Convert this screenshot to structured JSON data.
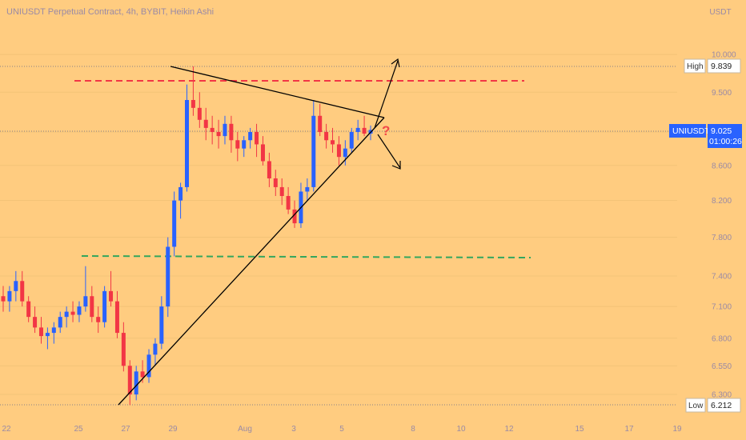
{
  "header": {
    "title": "UNIUSDT Perpetual Contract, 4h, BYBIT, Heikin Ashi",
    "currency": "USDT"
  },
  "colors": {
    "background": "#ffcc80",
    "bull": "#2962ff",
    "bear": "#f23645",
    "resistance": "#f23645",
    "support": "#33a65e",
    "trendline": "#000000",
    "label_bg": "#2962ff"
  },
  "price_tags": {
    "high": {
      "label": "High",
      "value": "9.839"
    },
    "low": {
      "label": "Low",
      "value": "6.212"
    },
    "last": {
      "label": "UNIUSDT",
      "value": "9.025",
      "countdown": "01:00:26"
    }
  },
  "annotation": {
    "text": "?"
  },
  "chart_data": {
    "type": "candlestick",
    "style": "Heikin Ashi",
    "symbol": "UNIUSDT",
    "timeframe": "4h",
    "exchange": "BYBIT",
    "y_axis": {
      "scale": "log",
      "ticks": [
        "10.000",
        "9.500",
        "9.000",
        "8.600",
        "8.200",
        "7.800",
        "7.400",
        "7.100",
        "6.800",
        "6.550",
        "6.300"
      ]
    },
    "x_axis": {
      "ticks": [
        "22",
        "25",
        "27",
        "29",
        "Aug",
        "3",
        "5",
        "8",
        "10",
        "12",
        "15",
        "17",
        "19"
      ]
    },
    "high": 9.839,
    "low": 6.212,
    "last": 9.025,
    "levels": [
      {
        "name": "resistance",
        "style": "dashed",
        "color": "#f23645",
        "price": 9.63
      },
      {
        "name": "support",
        "style": "dashed",
        "color": "#33a65e",
        "price": 7.56
      }
    ],
    "trendlines": [
      {
        "from": {
          "day": 29.0,
          "price": 9.839
        },
        "to": {
          "day": 36.1,
          "price": 9.07
        }
      },
      {
        "from": {
          "day": 26.9,
          "price": 6.212
        },
        "to": {
          "day": 36.1,
          "price": 9.07
        }
      }
    ],
    "arrows": [
      {
        "from": {
          "day": 35.7,
          "price": 9.15
        },
        "to": {
          "day": 36.2,
          "price": 10.2
        }
      },
      {
        "from": {
          "day": 35.7,
          "price": 9.0
        },
        "to": {
          "day": 36.3,
          "price": 8.6
        }
      }
    ],
    "candles_ohlc": [
      [
        7.2,
        7.3,
        7.05,
        7.15
      ],
      [
        7.15,
        7.3,
        7.05,
        7.25
      ],
      [
        7.25,
        7.45,
        7.15,
        7.35
      ],
      [
        7.35,
        7.45,
        7.1,
        7.15
      ],
      [
        7.15,
        7.2,
        6.95,
        7.0
      ],
      [
        7.0,
        7.1,
        6.85,
        6.9
      ],
      [
        6.9,
        7.0,
        6.75,
        6.82
      ],
      [
        6.82,
        6.9,
        6.7,
        6.85
      ],
      [
        6.85,
        6.95,
        6.75,
        6.9
      ],
      [
        6.9,
        7.05,
        6.85,
        7.0
      ],
      [
        7.0,
        7.1,
        6.9,
        7.05
      ],
      [
        7.05,
        7.15,
        6.95,
        7.02
      ],
      [
        7.02,
        7.15,
        6.95,
        7.1
      ],
      [
        7.1,
        7.5,
        7.05,
        7.2
      ],
      [
        7.2,
        7.3,
        6.95,
        7.0
      ],
      [
        7.0,
        7.1,
        6.85,
        6.95
      ],
      [
        6.95,
        7.3,
        6.9,
        7.25
      ],
      [
        7.25,
        7.45,
        7.1,
        7.15
      ],
      [
        7.15,
        7.25,
        6.8,
        6.85
      ],
      [
        6.85,
        6.95,
        6.5,
        6.55
      ],
      [
        6.55,
        6.6,
        6.21,
        6.3
      ],
      [
        6.3,
        6.55,
        6.25,
        6.5
      ],
      [
        6.5,
        6.6,
        6.4,
        6.45
      ],
      [
        6.45,
        6.7,
        6.4,
        6.65
      ],
      [
        6.65,
        6.8,
        6.55,
        6.75
      ],
      [
        6.75,
        7.2,
        6.7,
        7.1
      ],
      [
        7.1,
        7.8,
        7.0,
        7.7
      ],
      [
        7.7,
        8.3,
        7.6,
        8.2
      ],
      [
        8.2,
        8.4,
        8.0,
        8.35
      ],
      [
        8.35,
        9.6,
        8.3,
        9.4
      ],
      [
        9.4,
        9.84,
        9.2,
        9.3
      ],
      [
        9.3,
        9.5,
        9.05,
        9.15
      ],
      [
        9.15,
        9.3,
        8.9,
        9.05
      ],
      [
        9.05,
        9.2,
        8.85,
        9.0
      ],
      [
        9.0,
        9.15,
        8.8,
        8.95
      ],
      [
        8.95,
        9.2,
        8.85,
        9.1
      ],
      [
        9.1,
        9.2,
        8.75,
        8.9
      ],
      [
        8.9,
        9.0,
        8.65,
        8.8
      ],
      [
        8.8,
        8.95,
        8.7,
        8.9
      ],
      [
        8.9,
        9.05,
        8.8,
        9.0
      ],
      [
        9.0,
        9.1,
        8.7,
        8.85
      ],
      [
        8.85,
        8.95,
        8.6,
        8.65
      ],
      [
        8.65,
        8.75,
        8.35,
        8.45
      ],
      [
        8.45,
        8.55,
        8.25,
        8.35
      ],
      [
        8.35,
        8.45,
        8.15,
        8.25
      ],
      [
        8.25,
        8.35,
        8.05,
        8.1
      ],
      [
        8.1,
        8.2,
        7.9,
        7.95
      ],
      [
        7.95,
        8.4,
        7.9,
        8.3
      ],
      [
        8.3,
        8.45,
        8.2,
        8.35
      ],
      [
        8.35,
        9.4,
        8.3,
        9.2
      ],
      [
        9.2,
        9.35,
        8.95,
        9.0
      ],
      [
        9.0,
        9.1,
        8.8,
        8.9
      ],
      [
        8.9,
        9.05,
        8.75,
        8.85
      ],
      [
        8.85,
        8.95,
        8.6,
        8.7
      ],
      [
        8.7,
        8.9,
        8.6,
        8.8
      ],
      [
        8.8,
        9.05,
        8.75,
        9.0
      ],
      [
        9.0,
        9.15,
        8.9,
        9.05
      ],
      [
        9.05,
        9.2,
        8.95,
        8.98
      ],
      [
        8.98,
        9.08,
        8.9,
        9.025
      ]
    ]
  }
}
